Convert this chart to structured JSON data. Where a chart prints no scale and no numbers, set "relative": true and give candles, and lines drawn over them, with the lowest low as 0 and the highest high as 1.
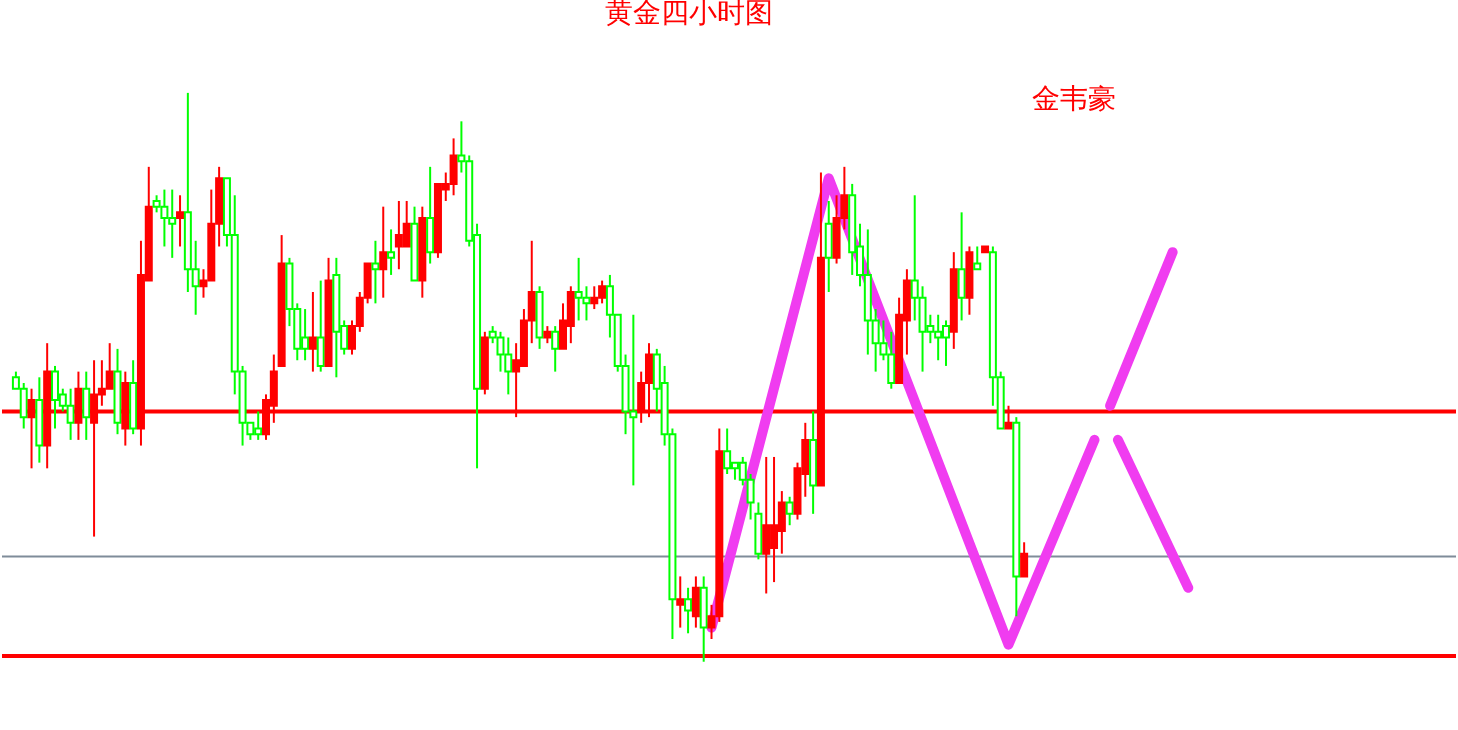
{
  "chart_data": {
    "type": "candlestick",
    "title": "黄金四小时图",
    "relative": true,
    "tick_labels": false,
    "annotations": [
      "金韦豪"
    ],
    "categories": [
      null,
      null,
      null,
      null,
      null,
      null,
      null,
      null,
      null,
      null,
      null,
      null,
      null,
      null,
      null,
      null,
      null,
      null,
      null,
      null,
      null,
      null,
      null,
      null,
      null,
      null,
      null,
      null,
      null,
      null,
      null,
      null,
      null,
      null,
      null,
      null,
      null,
      null,
      null,
      null,
      null,
      null,
      null,
      null,
      null,
      null,
      null,
      null,
      null,
      null,
      null,
      null,
      null,
      null,
      null,
      null,
      null,
      null,
      null,
      null,
      null,
      null,
      null,
      null,
      null,
      null,
      null,
      null,
      null,
      null,
      null,
      null,
      null,
      null,
      null,
      null,
      null,
      null,
      null,
      null,
      null,
      null,
      null,
      null,
      null,
      null,
      null,
      null,
      null,
      null,
      null,
      null,
      null,
      null,
      null,
      null,
      null,
      null,
      null,
      null,
      null,
      null,
      null,
      null,
      null,
      null,
      null,
      null,
      null,
      null,
      null,
      null,
      null,
      null,
      null,
      null,
      null,
      null,
      null,
      null,
      null,
      null,
      null,
      null,
      null,
      null,
      null,
      null,
      null,
      null,
      null,
      null,
      null,
      null,
      null,
      null,
      null,
      null,
      null,
      null,
      null,
      null,
      null,
      null,
      null,
      null,
      null,
      null,
      null,
      null,
      null
    ],
    "ohlc": [
      [
        0.5,
        0.51,
        0.48,
        0.48
      ],
      [
        0.48,
        0.49,
        0.41,
        0.43
      ],
      [
        0.43,
        0.48,
        0.34,
        0.46
      ],
      [
        0.46,
        0.5,
        0.35,
        0.38
      ],
      [
        0.38,
        0.56,
        0.34,
        0.51
      ],
      [
        0.51,
        0.52,
        0.41,
        0.46
      ],
      [
        0.47,
        0.48,
        0.44,
        0.45
      ],
      [
        0.45,
        0.48,
        0.39,
        0.42
      ],
      [
        0.42,
        0.51,
        0.39,
        0.48
      ],
      [
        0.48,
        0.51,
        0.39,
        0.43
      ],
      [
        0.42,
        0.53,
        0.22,
        0.47
      ],
      [
        0.47,
        0.53,
        0.45,
        0.48
      ],
      [
        0.48,
        0.56,
        0.48,
        0.51
      ],
      [
        0.51,
        0.55,
        0.4,
        0.42
      ],
      [
        0.41,
        0.51,
        0.38,
        0.49
      ],
      [
        0.49,
        0.53,
        0.4,
        0.41
      ],
      [
        0.41,
        0.74,
        0.38,
        0.68
      ],
      [
        0.67,
        0.87,
        0.67,
        0.8
      ],
      [
        0.81,
        0.82,
        0.79,
        0.8
      ],
      [
        0.8,
        0.83,
        0.73,
        0.78
      ],
      [
        0.78,
        0.83,
        0.71,
        0.77
      ],
      [
        0.78,
        0.82,
        0.73,
        0.79
      ],
      [
        0.79,
        1.0,
        0.65,
        0.69
      ],
      [
        0.69,
        0.74,
        0.61,
        0.66
      ],
      [
        0.66,
        0.69,
        0.64,
        0.67
      ],
      [
        0.67,
        0.83,
        0.67,
        0.77
      ],
      [
        0.77,
        0.87,
        0.73,
        0.85
      ],
      [
        0.85,
        0.85,
        0.73,
        0.75
      ],
      [
        0.75,
        0.82,
        0.47,
        0.51
      ],
      [
        0.51,
        0.52,
        0.38,
        0.42
      ],
      [
        0.42,
        0.42,
        0.39,
        0.4
      ],
      [
        0.41,
        0.44,
        0.39,
        0.4
      ],
      [
        0.4,
        0.47,
        0.39,
        0.46
      ],
      [
        0.45,
        0.54,
        0.42,
        0.51
      ],
      [
        0.52,
        0.75,
        0.52,
        0.7
      ],
      [
        0.7,
        0.71,
        0.59,
        0.62
      ],
      [
        0.62,
        0.63,
        0.53,
        0.55
      ],
      [
        0.57,
        0.62,
        0.53,
        0.55
      ],
      [
        0.55,
        0.65,
        0.51,
        0.57
      ],
      [
        0.57,
        0.67,
        0.51,
        0.52
      ],
      [
        0.52,
        0.71,
        0.52,
        0.67
      ],
      [
        0.68,
        0.71,
        0.5,
        0.58
      ],
      [
        0.59,
        0.6,
        0.54,
        0.55
      ],
      [
        0.55,
        0.6,
        0.54,
        0.59
      ],
      [
        0.59,
        0.65,
        0.58,
        0.64
      ],
      [
        0.64,
        0.7,
        0.63,
        0.7
      ],
      [
        0.7,
        0.74,
        0.63,
        0.69
      ],
      [
        0.69,
        0.8,
        0.64,
        0.72
      ],
      [
        0.72,
        0.76,
        0.68,
        0.71
      ],
      [
        0.73,
        0.81,
        0.69,
        0.75
      ],
      [
        0.73,
        0.81,
        0.73,
        0.77
      ],
      [
        0.77,
        0.8,
        0.67,
        0.67
      ],
      [
        0.67,
        0.8,
        0.64,
        0.78
      ],
      [
        0.78,
        0.87,
        0.7,
        0.72
      ],
      [
        0.72,
        0.84,
        0.71,
        0.84
      ],
      [
        0.83,
        0.86,
        0.81,
        0.84
      ],
      [
        0.84,
        0.92,
        0.82,
        0.89
      ],
      [
        0.89,
        0.95,
        0.86,
        0.88
      ],
      [
        0.88,
        0.89,
        0.73,
        0.74
      ],
      [
        0.75,
        0.77,
        0.34,
        0.48
      ],
      [
        0.48,
        0.58,
        0.47,
        0.57
      ],
      [
        0.58,
        0.59,
        0.56,
        0.57
      ],
      [
        0.57,
        0.58,
        0.51,
        0.54
      ],
      [
        0.54,
        0.57,
        0.47,
        0.51
      ],
      [
        0.51,
        0.56,
        0.43,
        0.53
      ],
      [
        0.52,
        0.62,
        0.52,
        0.6
      ],
      [
        0.6,
        0.74,
        0.56,
        0.65
      ],
      [
        0.65,
        0.66,
        0.55,
        0.57
      ],
      [
        0.57,
        0.59,
        0.56,
        0.58
      ],
      [
        0.58,
        0.59,
        0.51,
        0.55
      ],
      [
        0.55,
        0.63,
        0.55,
        0.6
      ],
      [
        0.59,
        0.66,
        0.56,
        0.65
      ],
      [
        0.65,
        0.71,
        0.6,
        0.64
      ],
      [
        0.64,
        0.66,
        0.6,
        0.63
      ],
      [
        0.63,
        0.66,
        0.62,
        0.64
      ],
      [
        0.64,
        0.67,
        0.63,
        0.66
      ],
      [
        0.66,
        0.68,
        0.57,
        0.61
      ],
      [
        0.61,
        0.61,
        0.51,
        0.52
      ],
      [
        0.52,
        0.54,
        0.4,
        0.44
      ],
      [
        0.44,
        0.61,
        0.31,
        0.43
      ],
      [
        0.44,
        0.51,
        0.42,
        0.49
      ],
      [
        0.49,
        0.56,
        0.43,
        0.54
      ],
      [
        0.54,
        0.55,
        0.44,
        0.48
      ],
      [
        0.49,
        0.52,
        0.38,
        0.4
      ],
      [
        0.4,
        0.41,
        0.04,
        0.11
      ],
      [
        0.1,
        0.15,
        0.06,
        0.11
      ],
      [
        0.11,
        0.13,
        0.05,
        0.09
      ],
      [
        0.08,
        0.15,
        0.06,
        0.13
      ],
      [
        0.13,
        0.15,
        0.0,
        0.06
      ],
      [
        0.06,
        0.1,
        0.04,
        0.08
      ],
      [
        0.08,
        0.41,
        0.07,
        0.37
      ],
      [
        0.37,
        0.41,
        0.33,
        0.34
      ],
      [
        0.35,
        0.35,
        0.32,
        0.34
      ],
      [
        0.35,
        0.36,
        0.31,
        0.32
      ],
      [
        0.32,
        0.33,
        0.25,
        0.28
      ],
      [
        0.26,
        0.28,
        0.18,
        0.19
      ],
      [
        0.19,
        0.36,
        0.12,
        0.24
      ],
      [
        0.2,
        0.36,
        0.14,
        0.24
      ],
      [
        0.23,
        0.3,
        0.19,
        0.28
      ],
      [
        0.28,
        0.29,
        0.24,
        0.26
      ],
      [
        0.26,
        0.35,
        0.25,
        0.34
      ],
      [
        0.33,
        0.42,
        0.29,
        0.39
      ],
      [
        0.39,
        0.44,
        0.26,
        0.31
      ],
      [
        0.31,
        0.86,
        0.31,
        0.71
      ],
      [
        0.77,
        0.81,
        0.65,
        0.71
      ],
      [
        0.71,
        0.82,
        0.7,
        0.78
      ],
      [
        0.78,
        0.87,
        0.76,
        0.82
      ],
      [
        0.82,
        0.84,
        0.68,
        0.72
      ],
      [
        0.73,
        0.77,
        0.66,
        0.68
      ],
      [
        0.68,
        0.76,
        0.54,
        0.6
      ],
      [
        0.6,
        0.62,
        0.51,
        0.56
      ],
      [
        0.56,
        0.6,
        0.53,
        0.54
      ],
      [
        0.54,
        0.58,
        0.48,
        0.49
      ],
      [
        0.49,
        0.64,
        0.49,
        0.61
      ],
      [
        0.6,
        0.69,
        0.54,
        0.67
      ],
      [
        0.67,
        0.82,
        0.6,
        0.64
      ],
      [
        0.64,
        0.66,
        0.51,
        0.58
      ],
      [
        0.59,
        0.61,
        0.56,
        0.58
      ],
      [
        0.58,
        0.61,
        0.53,
        0.57
      ],
      [
        0.59,
        0.6,
        0.52,
        0.57
      ],
      [
        0.58,
        0.72,
        0.55,
        0.69
      ],
      [
        0.69,
        0.79,
        0.6,
        0.64
      ],
      [
        0.64,
        0.73,
        0.61,
        0.72
      ],
      [
        0.7,
        0.73,
        0.69,
        0.69
      ],
      [
        0.72,
        0.73,
        0.72,
        0.73
      ],
      [
        0.72,
        0.73,
        0.45,
        0.5
      ],
      [
        0.5,
        0.51,
        0.41,
        0.41
      ],
      [
        0.41,
        0.45,
        0.41,
        0.42
      ],
      [
        0.42,
        0.43,
        0.08,
        0.15
      ],
      [
        0.15,
        0.21,
        0.15,
        0.19
      ],
      null,
      null,
      null,
      null,
      null,
      null,
      null,
      null,
      null,
      null,
      null,
      null,
      null,
      null,
      null,
      null,
      null,
      null,
      null,
      null,
      null
    ],
    "colors": [
      "#00ff00",
      "#00ff00",
      "#ff0000",
      "#00ff00",
      "#ff0000",
      "#00ff00",
      "#00ff00",
      "#00ff00",
      "#ff0000",
      "#00ff00",
      "#ff0000",
      "#ff0000",
      "#ff0000",
      "#00ff00",
      "#ff0000",
      "#00ff00",
      "#ff0000",
      "#ff0000",
      "#00ff00",
      "#00ff00",
      "#00ff00",
      "#ff0000",
      "#00ff00",
      "#00ff00",
      "#ff0000",
      "#ff0000",
      "#ff0000",
      "#00ff00",
      "#00ff00",
      "#00ff00",
      "#00ff00",
      "#00ff00",
      "#ff0000",
      "#ff0000",
      "#ff0000",
      "#00ff00",
      "#00ff00",
      "#00ff00",
      "#ff0000",
      "#00ff00",
      "#ff0000",
      "#00ff00",
      "#00ff00",
      "#ff0000",
      "#ff0000",
      "#ff0000",
      "#00ff00",
      "#ff0000",
      "#00ff00",
      "#ff0000",
      "#ff0000",
      "#00ff00",
      "#ff0000",
      "#00ff00",
      "#ff0000",
      "#ff0000",
      "#ff0000",
      "#00ff00",
      "#00ff00",
      "#00ff00",
      "#ff0000",
      "#00ff00",
      "#00ff00",
      "#00ff00",
      "#ff0000",
      "#ff0000",
      "#ff0000",
      "#00ff00",
      "#ff0000",
      "#00ff00",
      "#ff0000",
      "#ff0000",
      "#00ff00",
      "#00ff00",
      "#ff0000",
      "#ff0000",
      "#00ff00",
      "#00ff00",
      "#00ff00",
      "#00ff00",
      "#ff0000",
      "#ff0000",
      "#00ff00",
      "#00ff00",
      "#00ff00",
      "#ff0000",
      "#00ff00",
      "#ff0000",
      "#00ff00",
      "#ff0000",
      "#ff0000",
      "#00ff00",
      "#00ff00",
      "#00ff00",
      "#00ff00",
      "#00ff00",
      "#ff0000",
      "#ff0000",
      "#ff0000",
      "#00ff00",
      "#ff0000",
      "#ff0000",
      "#00ff00",
      "#ff0000",
      "#00ff00",
      "#ff0000",
      "#ff0000",
      "#00ff00",
      "#00ff00",
      "#00ff00",
      "#00ff00",
      "#00ff00",
      "#00ff00",
      "#ff0000",
      "#ff0000",
      "#00ff00",
      "#00ff00",
      "#00ff00",
      "#00ff00",
      "#00ff00",
      "#ff0000",
      "#00ff00",
      "#ff0000",
      "#00ff00",
      "#ff0000",
      "#00ff00",
      "#00ff00",
      "#ff0000",
      "#00ff00",
      "#ff0000",
      null,
      null,
      null,
      null,
      null,
      null,
      null,
      null,
      null,
      null,
      null,
      null,
      null,
      null,
      null,
      null,
      null,
      null,
      null,
      null,
      null
    ],
    "ref_lines": [
      {
        "axis": "y",
        "value": 0.44,
        "color": "#ff0000"
      },
      {
        "axis": "y",
        "value": 0.185,
        "color": "#7f8c99"
      },
      {
        "axis": "y",
        "value": 0.01,
        "color": "#ff0000"
      }
    ],
    "series": [
      {
        "type": "line",
        "color": "#f03cf0",
        "values": [
          null,
          null,
          null,
          null,
          null,
          null,
          null,
          null,
          null,
          null,
          null,
          null,
          null,
          null,
          null,
          null,
          null,
          null,
          null,
          null,
          null,
          null,
          null,
          null,
          null,
          null,
          null,
          null,
          null,
          null,
          null,
          null,
          null,
          null,
          null,
          null,
          null,
          null,
          null,
          null,
          null,
          null,
          null,
          null,
          null,
          null,
          null,
          null,
          null,
          null,
          null,
          null,
          null,
          null,
          null,
          null,
          null,
          null,
          null,
          null,
          null,
          null,
          null,
          null,
          null,
          null,
          null,
          null,
          null,
          null,
          null,
          null,
          null,
          null,
          null,
          null,
          null,
          null,
          null,
          null,
          null,
          null,
          null,
          null,
          null,
          null,
          null,
          null,
          null,
          0.06,
          null,
          null,
          null,
          null,
          null,
          null,
          null,
          null,
          null,
          null,
          null,
          null,
          null,
          null,
          0.85,
          null,
          null,
          null,
          null,
          null,
          null,
          null,
          null,
          null,
          null,
          null,
          null,
          null,
          null,
          null,
          null,
          null,
          null,
          null,
          null,
          null,
          null,
          0.03,
          null,
          null,
          null,
          null,
          null,
          null,
          null,
          null,
          null,
          null,
          0.39,
          null,
          null,
          null,
          null,
          null,
          null,
          null,
          null,
          null,
          null,
          null,
          null
        ]
      },
      {
        "type": "line",
        "color": "#f03cf0",
        "values": [
          null,
          null,
          null,
          null,
          null,
          null,
          null,
          null,
          null,
          null,
          null,
          null,
          null,
          null,
          null,
          null,
          null,
          null,
          null,
          null,
          null,
          null,
          null,
          null,
          null,
          null,
          null,
          null,
          null,
          null,
          null,
          null,
          null,
          null,
          null,
          null,
          null,
          null,
          null,
          null,
          null,
          null,
          null,
          null,
          null,
          null,
          null,
          null,
          null,
          null,
          null,
          null,
          null,
          null,
          null,
          null,
          null,
          null,
          null,
          null,
          null,
          null,
          null,
          null,
          null,
          null,
          null,
          null,
          null,
          null,
          null,
          null,
          null,
          null,
          null,
          null,
          null,
          null,
          null,
          null,
          null,
          null,
          null,
          null,
          null,
          null,
          null,
          null,
          null,
          null,
          null,
          null,
          null,
          null,
          null,
          null,
          null,
          null,
          null,
          null,
          null,
          null,
          null,
          null,
          null,
          null,
          null,
          null,
          null,
          null,
          null,
          null,
          null,
          null,
          null,
          null,
          null,
          null,
          null,
          null,
          null,
          null,
          null,
          null,
          null,
          null,
          null,
          null,
          null,
          null,
          null,
          null,
          null,
          null,
          null,
          null,
          null,
          null,
          null,
          null,
          0.45,
          null,
          null,
          null,
          null,
          null,
          null,
          null,
          0.72,
          null,
          null
        ]
      },
      {
        "type": "line",
        "color": "#f03cf0",
        "values": [
          null,
          null,
          null,
          null,
          null,
          null,
          null,
          null,
          null,
          null,
          null,
          null,
          null,
          null,
          null,
          null,
          null,
          null,
          null,
          null,
          null,
          null,
          null,
          null,
          null,
          null,
          null,
          null,
          null,
          null,
          null,
          null,
          null,
          null,
          null,
          null,
          null,
          null,
          null,
          null,
          null,
          null,
          null,
          null,
          null,
          null,
          null,
          null,
          null,
          null,
          null,
          null,
          null,
          null,
          null,
          null,
          null,
          null,
          null,
          null,
          null,
          null,
          null,
          null,
          null,
          null,
          null,
          null,
          null,
          null,
          null,
          null,
          null,
          null,
          null,
          null,
          null,
          null,
          null,
          null,
          null,
          null,
          null,
          null,
          null,
          null,
          null,
          null,
          null,
          null,
          null,
          null,
          null,
          null,
          null,
          null,
          null,
          null,
          null,
          null,
          null,
          null,
          null,
          null,
          null,
          null,
          null,
          null,
          null,
          null,
          null,
          null,
          null,
          null,
          null,
          null,
          null,
          null,
          null,
          null,
          null,
          null,
          null,
          null,
          null,
          null,
          null,
          null,
          null,
          null,
          null,
          null,
          null,
          null,
          null,
          null,
          null,
          null,
          null,
          null,
          null,
          0.39,
          null,
          null,
          null,
          null,
          null,
          null,
          null,
          null,
          0.13
        ]
      }
    ],
    "line_style": "solid"
  }
}
